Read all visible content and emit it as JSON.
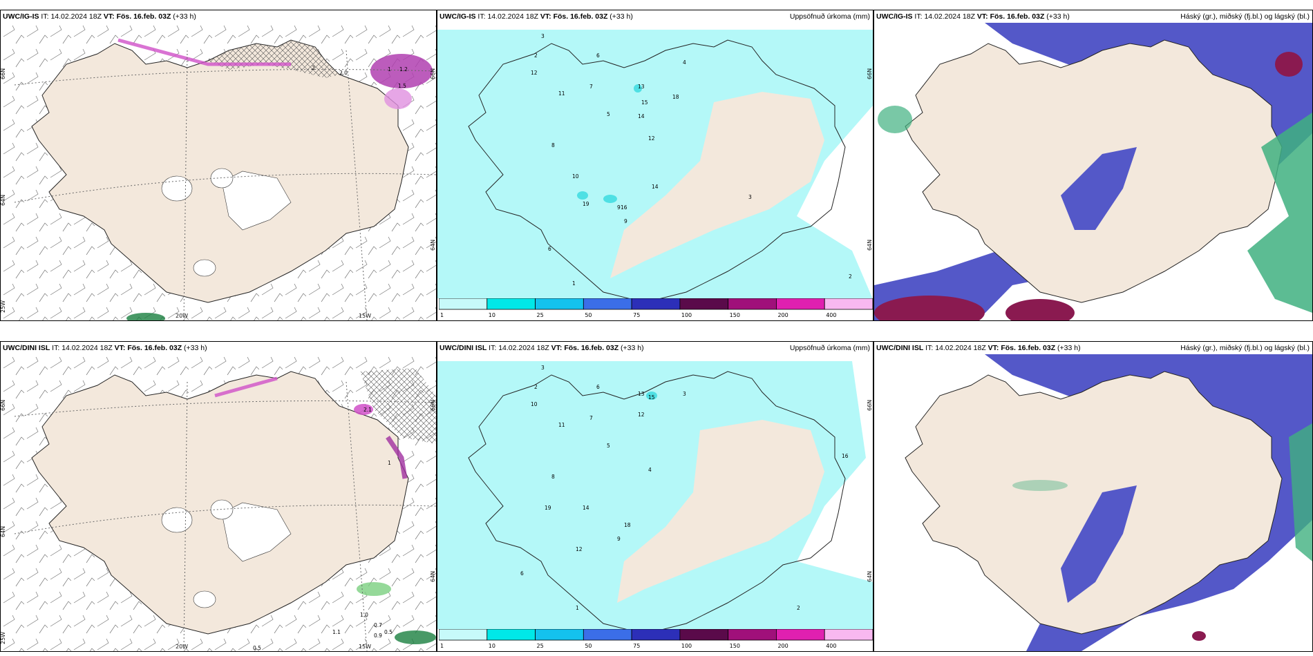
{
  "colors": {
    "land": "#f3e8dc",
    "sea": "#ffffff",
    "precip_light": "#b4f8f8",
    "precip_mid": "#4fe0e4",
    "cloud_high": "#40b080",
    "cloud_mid": "#5458c8",
    "cloud_low": "#8a1a50",
    "pink": "#d050c8"
  },
  "colorbar": {
    "ticks": [
      "1",
      "10",
      "25",
      "50",
      "75",
      "100",
      "150",
      "200",
      "400"
    ],
    "colors": [
      "#c7fafa",
      "#00e8e8",
      "#14c2ee",
      "#3b6ee8",
      "#2c2fb8",
      "#5a0a4a",
      "#a0107a",
      "#e020b0",
      "#f8b8f0"
    ]
  },
  "rows": [
    {
      "model_label": "UWC/IG-IS",
      "it_prefix": "IT:",
      "it_value": "14.02.2024 18Z",
      "vt_prefix": "VT:",
      "vt_value": "Fös. 16.feb. 03Z",
      "lead": "(+33 h)",
      "precip_title": "Uppsöfnuð úrkoma (mm)",
      "cloud_title": "Háský (gr.), miðský (fj.bl.) og lágský (bl.)",
      "lat_labels": [
        "66N",
        "64N"
      ],
      "lon_labels": [
        "25W",
        "20W",
        "15W"
      ],
      "right_lat_labels": [
        "66N",
        "64N"
      ],
      "pink_values": [
        "2",
        "2.0",
        "1",
        "1.2",
        "1.5"
      ],
      "green_values": [],
      "precip_values": [
        "2",
        "3",
        "12",
        "11",
        "8",
        "7",
        "6",
        "5",
        "9",
        "13",
        "15",
        "14",
        "12",
        "4",
        "3",
        "10",
        "19",
        "18",
        "16",
        "6",
        "2",
        "1",
        "9",
        "14"
      ]
    },
    {
      "model_label": "UWC/DINI ISL",
      "it_prefix": "IT:",
      "it_value": "14.02.2024 18Z",
      "vt_prefix": "VT:",
      "vt_value": "Fös. 16.feb. 03Z",
      "lead": "(+33 h)",
      "precip_title": "Uppsöfnuð úrkoma (mm)",
      "cloud_title": "Háský (gr.), miðský (fj.bl.) og lágský (bl.)",
      "lat_labels": [
        "66N",
        "64N"
      ],
      "lon_labels": [
        "25W",
        "20W",
        "15W"
      ],
      "right_lat_labels": [
        "66N",
        "64N"
      ],
      "pink_values": [
        "2.1",
        "1"
      ],
      "green_values": [
        "1.0",
        "0.7",
        "1.1",
        "0.5",
        "0.9",
        "0.5"
      ],
      "precip_values": [
        "2",
        "3",
        "10",
        "11",
        "8",
        "7",
        "6",
        "5",
        "9",
        "13",
        "15",
        "12",
        "4",
        "3",
        "19",
        "14",
        "16",
        "6",
        "2",
        "1",
        "12",
        "18"
      ]
    }
  ]
}
